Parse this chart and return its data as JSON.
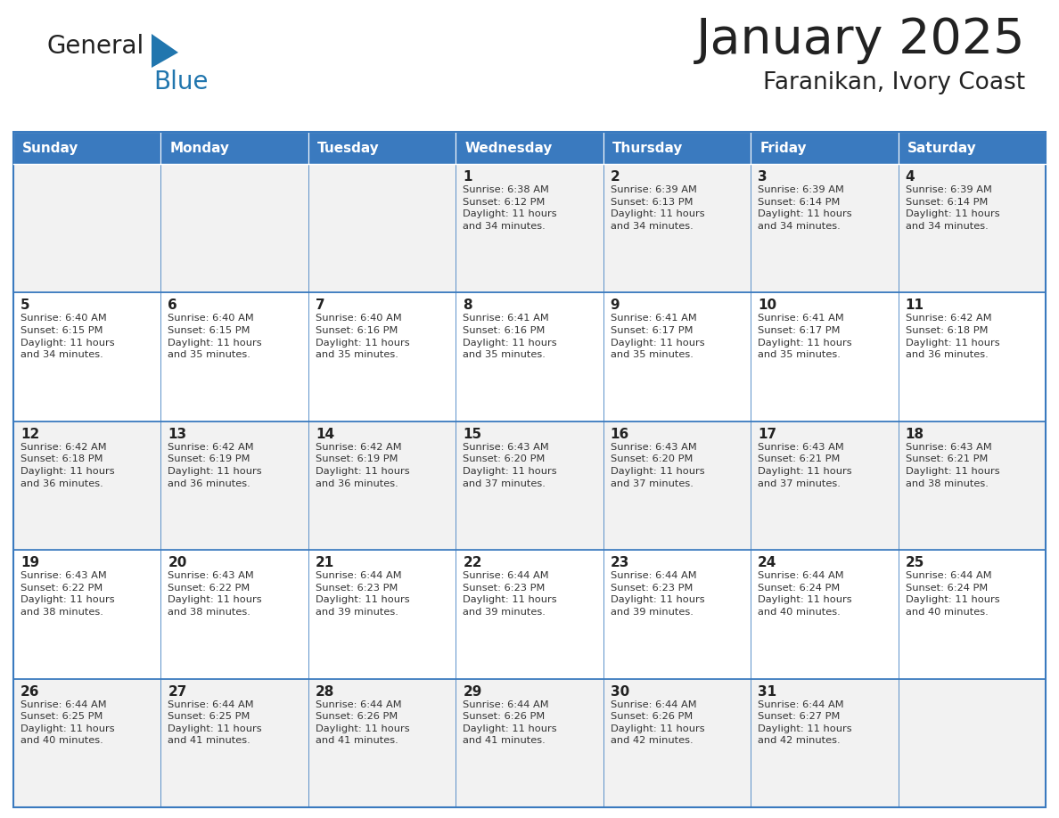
{
  "title": "January 2025",
  "subtitle": "Faranikan, Ivory Coast",
  "header_bg": "#3a7abf",
  "header_text_color": "#FFFFFF",
  "cell_bg_odd": "#F2F2F2",
  "cell_bg_even": "#FFFFFF",
  "border_color": "#3a7abf",
  "days_of_week": [
    "Sunday",
    "Monday",
    "Tuesday",
    "Wednesday",
    "Thursday",
    "Friday",
    "Saturday"
  ],
  "weeks": [
    [
      {
        "day": "",
        "info": ""
      },
      {
        "day": "",
        "info": ""
      },
      {
        "day": "",
        "info": ""
      },
      {
        "day": "1",
        "info": "Sunrise: 6:38 AM\nSunset: 6:12 PM\nDaylight: 11 hours\nand 34 minutes."
      },
      {
        "day": "2",
        "info": "Sunrise: 6:39 AM\nSunset: 6:13 PM\nDaylight: 11 hours\nand 34 minutes."
      },
      {
        "day": "3",
        "info": "Sunrise: 6:39 AM\nSunset: 6:14 PM\nDaylight: 11 hours\nand 34 minutes."
      },
      {
        "day": "4",
        "info": "Sunrise: 6:39 AM\nSunset: 6:14 PM\nDaylight: 11 hours\nand 34 minutes."
      }
    ],
    [
      {
        "day": "5",
        "info": "Sunrise: 6:40 AM\nSunset: 6:15 PM\nDaylight: 11 hours\nand 34 minutes."
      },
      {
        "day": "6",
        "info": "Sunrise: 6:40 AM\nSunset: 6:15 PM\nDaylight: 11 hours\nand 35 minutes."
      },
      {
        "day": "7",
        "info": "Sunrise: 6:40 AM\nSunset: 6:16 PM\nDaylight: 11 hours\nand 35 minutes."
      },
      {
        "day": "8",
        "info": "Sunrise: 6:41 AM\nSunset: 6:16 PM\nDaylight: 11 hours\nand 35 minutes."
      },
      {
        "day": "9",
        "info": "Sunrise: 6:41 AM\nSunset: 6:17 PM\nDaylight: 11 hours\nand 35 minutes."
      },
      {
        "day": "10",
        "info": "Sunrise: 6:41 AM\nSunset: 6:17 PM\nDaylight: 11 hours\nand 35 minutes."
      },
      {
        "day": "11",
        "info": "Sunrise: 6:42 AM\nSunset: 6:18 PM\nDaylight: 11 hours\nand 36 minutes."
      }
    ],
    [
      {
        "day": "12",
        "info": "Sunrise: 6:42 AM\nSunset: 6:18 PM\nDaylight: 11 hours\nand 36 minutes."
      },
      {
        "day": "13",
        "info": "Sunrise: 6:42 AM\nSunset: 6:19 PM\nDaylight: 11 hours\nand 36 minutes."
      },
      {
        "day": "14",
        "info": "Sunrise: 6:42 AM\nSunset: 6:19 PM\nDaylight: 11 hours\nand 36 minutes."
      },
      {
        "day": "15",
        "info": "Sunrise: 6:43 AM\nSunset: 6:20 PM\nDaylight: 11 hours\nand 37 minutes."
      },
      {
        "day": "16",
        "info": "Sunrise: 6:43 AM\nSunset: 6:20 PM\nDaylight: 11 hours\nand 37 minutes."
      },
      {
        "day": "17",
        "info": "Sunrise: 6:43 AM\nSunset: 6:21 PM\nDaylight: 11 hours\nand 37 minutes."
      },
      {
        "day": "18",
        "info": "Sunrise: 6:43 AM\nSunset: 6:21 PM\nDaylight: 11 hours\nand 38 minutes."
      }
    ],
    [
      {
        "day": "19",
        "info": "Sunrise: 6:43 AM\nSunset: 6:22 PM\nDaylight: 11 hours\nand 38 minutes."
      },
      {
        "day": "20",
        "info": "Sunrise: 6:43 AM\nSunset: 6:22 PM\nDaylight: 11 hours\nand 38 minutes."
      },
      {
        "day": "21",
        "info": "Sunrise: 6:44 AM\nSunset: 6:23 PM\nDaylight: 11 hours\nand 39 minutes."
      },
      {
        "day": "22",
        "info": "Sunrise: 6:44 AM\nSunset: 6:23 PM\nDaylight: 11 hours\nand 39 minutes."
      },
      {
        "day": "23",
        "info": "Sunrise: 6:44 AM\nSunset: 6:23 PM\nDaylight: 11 hours\nand 39 minutes."
      },
      {
        "day": "24",
        "info": "Sunrise: 6:44 AM\nSunset: 6:24 PM\nDaylight: 11 hours\nand 40 minutes."
      },
      {
        "day": "25",
        "info": "Sunrise: 6:44 AM\nSunset: 6:24 PM\nDaylight: 11 hours\nand 40 minutes."
      }
    ],
    [
      {
        "day": "26",
        "info": "Sunrise: 6:44 AM\nSunset: 6:25 PM\nDaylight: 11 hours\nand 40 minutes."
      },
      {
        "day": "27",
        "info": "Sunrise: 6:44 AM\nSunset: 6:25 PM\nDaylight: 11 hours\nand 41 minutes."
      },
      {
        "day": "28",
        "info": "Sunrise: 6:44 AM\nSunset: 6:26 PM\nDaylight: 11 hours\nand 41 minutes."
      },
      {
        "day": "29",
        "info": "Sunrise: 6:44 AM\nSunset: 6:26 PM\nDaylight: 11 hours\nand 41 minutes."
      },
      {
        "day": "30",
        "info": "Sunrise: 6:44 AM\nSunset: 6:26 PM\nDaylight: 11 hours\nand 42 minutes."
      },
      {
        "day": "31",
        "info": "Sunrise: 6:44 AM\nSunset: 6:27 PM\nDaylight: 11 hours\nand 42 minutes."
      },
      {
        "day": "",
        "info": ""
      }
    ]
  ],
  "logo_general_color": "#222222",
  "logo_blue_color": "#2176ae",
  "logo_triangle_color": "#2176ae",
  "title_color": "#222222",
  "subtitle_color": "#222222"
}
